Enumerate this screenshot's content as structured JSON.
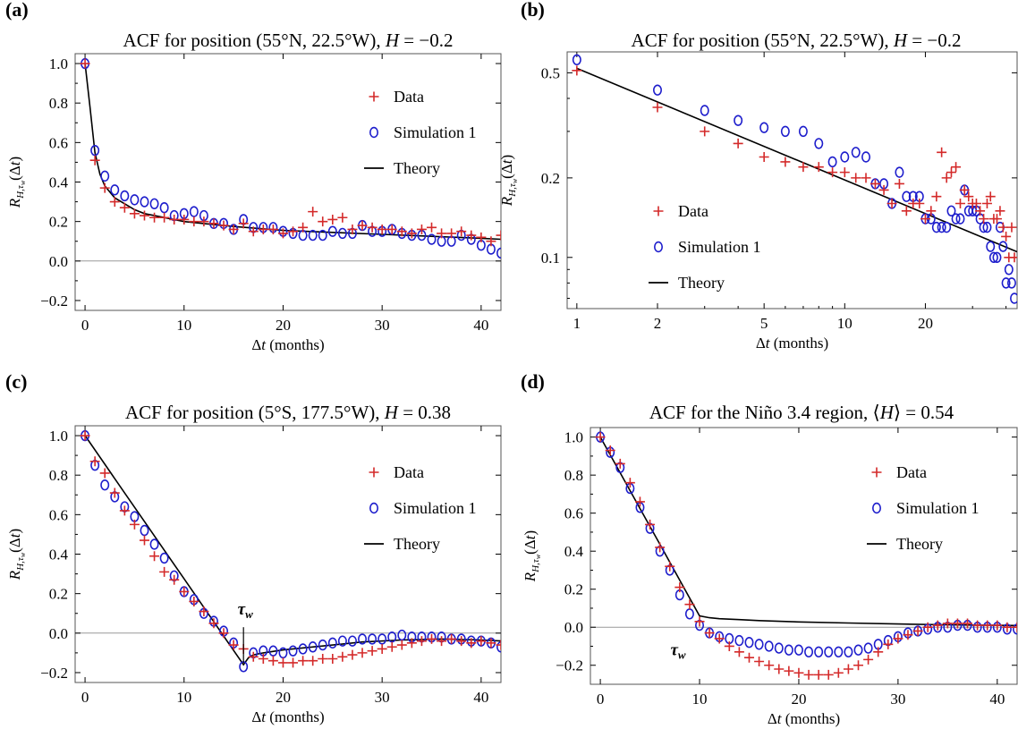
{
  "panel_labels": [
    "(a)",
    "(b)",
    "(c)",
    "(d)"
  ],
  "colors": {
    "data": "#d42a2a",
    "simulation": "#1d1dcc",
    "theory": "#000000",
    "zero_line": "#999999",
    "axis": "#000000"
  },
  "chart_data": [
    {
      "type": "scatter",
      "panel": "(a)",
      "title": "ACF for position (55°N, 22.5°W), H = −0.2",
      "title_parts": {
        "prefix": "ACF for position (55°N, 22.5°W), ",
        "italic": "H",
        "suffix": " = −0.2"
      },
      "xlabel": "Δt (months)",
      "ylabel": "R_{H,τw}(Δt)",
      "xlim": [
        -1,
        42
      ],
      "ylim": [
        -0.25,
        1.05
      ],
      "xscale": "linear",
      "yscale": "linear",
      "xticks": [
        0,
        10,
        20,
        30,
        40
      ],
      "xtick_labels": [
        "0",
        "10",
        "20",
        "30",
        "40"
      ],
      "yticks": [
        -0.2,
        0,
        0.2,
        0.4,
        0.6,
        0.8,
        1.0
      ],
      "ytick_labels": [
        "−0.2",
        "0.0",
        "0.2",
        "0.4",
        "0.6",
        "0.8",
        "1.0"
      ],
      "zero_line": true,
      "legend": {
        "placement": "top-right",
        "entries": [
          "Data",
          "Simulation 1",
          "Theory"
        ]
      },
      "series": [
        {
          "name": "Data",
          "marker": "plus",
          "x": [
            0,
            1,
            2,
            3,
            4,
            5,
            6,
            7,
            8,
            9,
            10,
            11,
            12,
            13,
            14,
            15,
            16,
            17,
            18,
            19,
            20,
            21,
            22,
            23,
            24,
            25,
            26,
            27,
            28,
            29,
            30,
            31,
            32,
            33,
            34,
            35,
            36,
            37,
            38,
            39,
            40,
            41,
            42
          ],
          "y": [
            1.0,
            0.51,
            0.37,
            0.3,
            0.27,
            0.24,
            0.23,
            0.22,
            0.22,
            0.21,
            0.21,
            0.2,
            0.2,
            0.19,
            0.18,
            0.16,
            0.19,
            0.15,
            0.16,
            0.16,
            0.14,
            0.15,
            0.17,
            0.25,
            0.2,
            0.21,
            0.22,
            0.16,
            0.18,
            0.17,
            0.16,
            0.16,
            0.15,
            0.14,
            0.16,
            0.17,
            0.14,
            0.14,
            0.15,
            0.13,
            0.12,
            0.1,
            0.13
          ]
        },
        {
          "name": "Simulation 1",
          "marker": "circle",
          "x": [
            0,
            1,
            2,
            3,
            4,
            5,
            6,
            7,
            8,
            9,
            10,
            11,
            12,
            13,
            14,
            15,
            16,
            17,
            18,
            19,
            20,
            21,
            22,
            23,
            24,
            25,
            26,
            27,
            28,
            29,
            30,
            31,
            32,
            33,
            34,
            35,
            36,
            37,
            38,
            39,
            40,
            41,
            42
          ],
          "y": [
            1.0,
            0.56,
            0.43,
            0.36,
            0.33,
            0.31,
            0.3,
            0.29,
            0.27,
            0.23,
            0.24,
            0.25,
            0.23,
            0.19,
            0.19,
            0.16,
            0.21,
            0.17,
            0.17,
            0.17,
            0.15,
            0.14,
            0.13,
            0.13,
            0.13,
            0.15,
            0.14,
            0.14,
            0.18,
            0.15,
            0.15,
            0.16,
            0.14,
            0.13,
            0.13,
            0.11,
            0.1,
            0.1,
            0.13,
            0.11,
            0.08,
            0.06,
            0.04
          ]
        },
        {
          "name": "Theory",
          "marker": "line",
          "x": [
            0,
            0.5,
            1,
            1.5,
            2,
            3,
            4,
            5,
            6,
            8,
            10,
            12,
            15,
            20,
            25,
            30,
            35,
            40,
            42
          ],
          "y": [
            1.0,
            0.78,
            0.55,
            0.44,
            0.38,
            0.32,
            0.29,
            0.26,
            0.24,
            0.22,
            0.2,
            0.19,
            0.175,
            0.155,
            0.145,
            0.135,
            0.125,
            0.115,
            0.11
          ]
        }
      ]
    },
    {
      "type": "scatter",
      "panel": "(b)",
      "title": "ACF for position (55°N, 22.5°W), H = −0.2",
      "title_parts": {
        "prefix": "ACF for position (55°N, 22.5°W), ",
        "italic": "H",
        "suffix": " = −0.2"
      },
      "xlabel": "Δt (months)",
      "ylabel": "R_{H,τw}(Δt)",
      "xlim": [
        0.92,
        44
      ],
      "ylim": [
        0.064,
        0.6
      ],
      "xscale": "log",
      "yscale": "log",
      "xticks": [
        1,
        2,
        5,
        10,
        20
      ],
      "xtick_labels": [
        "1",
        "2",
        "5",
        "10",
        "20"
      ],
      "yticks": [
        0.1,
        0.2,
        0.5
      ],
      "ytick_labels": [
        "0.1",
        "0.2",
        "0.5"
      ],
      "zero_line": false,
      "legend": {
        "placement": "left-center",
        "entries": [
          "Data",
          "Simulation 1",
          "Theory"
        ]
      },
      "series": [
        {
          "name": "Data",
          "marker": "plus",
          "x": [
            1,
            2,
            3,
            4,
            5,
            6,
            7,
            8,
            9,
            10,
            11,
            12,
            13,
            14,
            15,
            16,
            17,
            18,
            19,
            20,
            21,
            22,
            23,
            24,
            25,
            26,
            27,
            28,
            29,
            30,
            31,
            32,
            33,
            34,
            35,
            36,
            37,
            38,
            39,
            40,
            41,
            42,
            43
          ],
          "y": [
            0.51,
            0.37,
            0.3,
            0.27,
            0.24,
            0.23,
            0.22,
            0.22,
            0.21,
            0.21,
            0.2,
            0.2,
            0.19,
            0.18,
            0.16,
            0.19,
            0.15,
            0.16,
            0.16,
            0.14,
            0.15,
            0.17,
            0.25,
            0.2,
            0.21,
            0.22,
            0.16,
            0.18,
            0.17,
            0.16,
            0.16,
            0.15,
            0.14,
            0.16,
            0.17,
            0.14,
            0.14,
            0.15,
            0.13,
            0.12,
            0.1,
            0.13,
            0.1
          ]
        },
        {
          "name": "Simulation 1",
          "marker": "circle",
          "x": [
            1,
            2,
            3,
            4,
            5,
            6,
            7,
            8,
            9,
            10,
            11,
            12,
            13,
            14,
            15,
            16,
            17,
            18,
            19,
            20,
            21,
            22,
            23,
            24,
            25,
            26,
            27,
            28,
            29,
            30,
            31,
            32,
            33,
            34,
            35,
            36,
            37,
            38,
            39,
            40,
            41,
            42,
            43
          ],
          "y": [
            0.56,
            0.43,
            0.36,
            0.33,
            0.31,
            0.3,
            0.3,
            0.27,
            0.23,
            0.24,
            0.25,
            0.24,
            0.19,
            0.19,
            0.16,
            0.21,
            0.17,
            0.17,
            0.17,
            0.14,
            0.14,
            0.13,
            0.13,
            0.13,
            0.15,
            0.14,
            0.14,
            0.18,
            0.15,
            0.15,
            0.15,
            0.14,
            0.13,
            0.13,
            0.11,
            0.1,
            0.1,
            0.13,
            0.11,
            0.08,
            0.09,
            0.08,
            0.07
          ]
        },
        {
          "name": "Theory",
          "marker": "line",
          "x": [
            1,
            44
          ],
          "y": [
            0.52,
            0.105
          ]
        }
      ]
    },
    {
      "type": "scatter",
      "panel": "(c)",
      "title": "ACF for position (5°S, 177.5°W), H = 0.38",
      "title_parts": {
        "prefix": "ACF for position (5°S, 177.5°W), ",
        "italic": "H",
        "suffix": " = 0.38"
      },
      "xlabel": "Δt (months)",
      "ylabel": "R_{H,τw}(Δt)",
      "xlim": [
        -1,
        42
      ],
      "ylim": [
        -0.25,
        1.05
      ],
      "xscale": "linear",
      "yscale": "linear",
      "xticks": [
        0,
        10,
        20,
        30,
        40
      ],
      "xtick_labels": [
        "0",
        "10",
        "20",
        "30",
        "40"
      ],
      "yticks": [
        -0.2,
        0,
        0.2,
        0.4,
        0.6,
        0.8,
        1.0
      ],
      "ytick_labels": [
        "−0.2",
        "0.0",
        "0.2",
        "0.4",
        "0.6",
        "0.8",
        "1.0"
      ],
      "zero_line": true,
      "legend": {
        "placement": "top-right",
        "entries": [
          "Data",
          "Simulation 1",
          "Theory"
        ]
      },
      "annotation": {
        "text": "τw",
        "x": 16
      },
      "series": [
        {
          "name": "Data",
          "marker": "plus",
          "x": [
            0,
            1,
            2,
            3,
            4,
            5,
            6,
            7,
            8,
            9,
            10,
            11,
            12,
            13,
            14,
            15,
            16,
            17,
            18,
            19,
            20,
            21,
            22,
            23,
            24,
            25,
            26,
            27,
            28,
            29,
            30,
            31,
            32,
            33,
            34,
            35,
            36,
            37,
            38,
            39,
            40,
            41,
            42
          ],
          "y": [
            1.0,
            0.87,
            0.81,
            0.71,
            0.62,
            0.55,
            0.47,
            0.39,
            0.31,
            0.27,
            0.21,
            0.16,
            0.11,
            0.05,
            0.0,
            -0.06,
            -0.08,
            -0.12,
            -0.13,
            -0.14,
            -0.15,
            -0.15,
            -0.14,
            -0.14,
            -0.13,
            -0.13,
            -0.12,
            -0.11,
            -0.1,
            -0.09,
            -0.08,
            -0.07,
            -0.06,
            -0.05,
            -0.04,
            -0.03,
            -0.04,
            -0.03,
            -0.04,
            -0.05,
            -0.04,
            -0.05,
            -0.06
          ]
        },
        {
          "name": "Simulation 1",
          "marker": "circle",
          "x": [
            0,
            1,
            2,
            3,
            4,
            5,
            6,
            7,
            8,
            9,
            10,
            11,
            12,
            13,
            14,
            15,
            16,
            17,
            18,
            19,
            20,
            21,
            22,
            23,
            24,
            25,
            26,
            27,
            28,
            29,
            30,
            31,
            32,
            33,
            34,
            35,
            36,
            37,
            38,
            39,
            40,
            41,
            42
          ],
          "y": [
            1.0,
            0.85,
            0.75,
            0.69,
            0.64,
            0.59,
            0.52,
            0.45,
            0.38,
            0.29,
            0.21,
            0.17,
            0.1,
            0.06,
            0.01,
            -0.05,
            -0.17,
            -0.1,
            -0.09,
            -0.09,
            -0.1,
            -0.09,
            -0.08,
            -0.07,
            -0.06,
            -0.05,
            -0.04,
            -0.04,
            -0.03,
            -0.03,
            -0.03,
            -0.02,
            -0.01,
            -0.02,
            -0.02,
            -0.02,
            -0.02,
            -0.03,
            -0.03,
            -0.04,
            -0.04,
            -0.05,
            -0.07
          ]
        },
        {
          "name": "Theory",
          "marker": "line",
          "x": [
            0,
            2,
            4,
            6,
            8,
            10,
            12,
            14,
            16,
            16.5,
            17,
            18,
            20,
            24,
            28,
            32,
            36,
            40,
            42
          ],
          "y": [
            1.0,
            0.855,
            0.71,
            0.565,
            0.42,
            0.275,
            0.13,
            -0.015,
            -0.16,
            -0.125,
            -0.11,
            -0.1,
            -0.085,
            -0.065,
            -0.045,
            -0.035,
            -0.03,
            -0.035,
            -0.04
          ]
        }
      ]
    },
    {
      "type": "scatter",
      "panel": "(d)",
      "title": "ACF for the Niño 3.4 region, ⟨H⟩ = 0.54",
      "title_parts": {
        "prefix": "ACF for the Niño 3.4 region, ⟨",
        "italic": "H",
        "suffix": "⟩ = 0.54"
      },
      "xlabel": "Δt (months)",
      "ylabel": "R_{H,τw}(Δt)",
      "xlim": [
        -1,
        42
      ],
      "ylim": [
        -0.3,
        1.05
      ],
      "xscale": "linear",
      "yscale": "linear",
      "xticks": [
        0,
        10,
        20,
        30,
        40
      ],
      "xtick_labels": [
        "0",
        "10",
        "20",
        "30",
        "40"
      ],
      "yticks": [
        -0.2,
        0,
        0.2,
        0.4,
        0.6,
        0.8,
        1.0
      ],
      "ytick_labels": [
        "−0.2",
        "0.0",
        "0.2",
        "0.4",
        "0.6",
        "0.8",
        "1.0"
      ],
      "zero_line": true,
      "legend": {
        "placement": "top-right",
        "entries": [
          "Data",
          "Simulation 1",
          "Theory"
        ]
      },
      "annotation": {
        "text": "τw",
        "x": 10
      },
      "series": [
        {
          "name": "Data",
          "marker": "plus",
          "x": [
            0,
            1,
            2,
            3,
            4,
            5,
            6,
            7,
            8,
            9,
            10,
            11,
            12,
            13,
            14,
            15,
            16,
            17,
            18,
            19,
            20,
            21,
            22,
            23,
            24,
            25,
            26,
            27,
            28,
            29,
            30,
            31,
            32,
            33,
            34,
            35,
            36,
            37,
            38,
            39,
            40,
            41,
            42
          ],
          "y": [
            1.0,
            0.93,
            0.86,
            0.76,
            0.66,
            0.54,
            0.42,
            0.32,
            0.21,
            0.12,
            0.03,
            -0.03,
            -0.06,
            -0.1,
            -0.13,
            -0.16,
            -0.18,
            -0.2,
            -0.22,
            -0.23,
            -0.24,
            -0.25,
            -0.25,
            -0.25,
            -0.24,
            -0.22,
            -0.2,
            -0.17,
            -0.13,
            -0.09,
            -0.06,
            -0.04,
            -0.02,
            0.0,
            0.01,
            0.02,
            0.02,
            0.02,
            0.01,
            0.01,
            0.01,
            0.0,
            0.0
          ]
        },
        {
          "name": "Simulation 1",
          "marker": "circle",
          "x": [
            0,
            1,
            2,
            3,
            4,
            5,
            6,
            7,
            8,
            9,
            10,
            11,
            12,
            13,
            14,
            15,
            16,
            17,
            18,
            19,
            20,
            21,
            22,
            23,
            24,
            25,
            26,
            27,
            28,
            29,
            30,
            31,
            32,
            33,
            34,
            35,
            36,
            37,
            38,
            39,
            40,
            41,
            42
          ],
          "y": [
            1.0,
            0.92,
            0.84,
            0.73,
            0.63,
            0.52,
            0.4,
            0.3,
            0.17,
            0.07,
            0.01,
            -0.03,
            -0.05,
            -0.06,
            -0.07,
            -0.08,
            -0.09,
            -0.1,
            -0.11,
            -0.12,
            -0.12,
            -0.13,
            -0.13,
            -0.13,
            -0.13,
            -0.13,
            -0.12,
            -0.11,
            -0.09,
            -0.07,
            -0.05,
            -0.03,
            -0.02,
            -0.01,
            0.0,
            0.0,
            0.01,
            0.01,
            0.0,
            0.0,
            0.0,
            -0.01,
            -0.01
          ]
        },
        {
          "name": "Theory",
          "marker": "line",
          "x": [
            0,
            2,
            4,
            6,
            8,
            10,
            11,
            12,
            14,
            16,
            20,
            25,
            30,
            35,
            40,
            42
          ],
          "y": [
            1.0,
            0.812,
            0.624,
            0.436,
            0.248,
            0.06,
            0.05,
            0.045,
            0.04,
            0.035,
            0.028,
            0.022,
            0.017,
            0.013,
            0.01,
            0.009
          ]
        }
      ]
    }
  ]
}
